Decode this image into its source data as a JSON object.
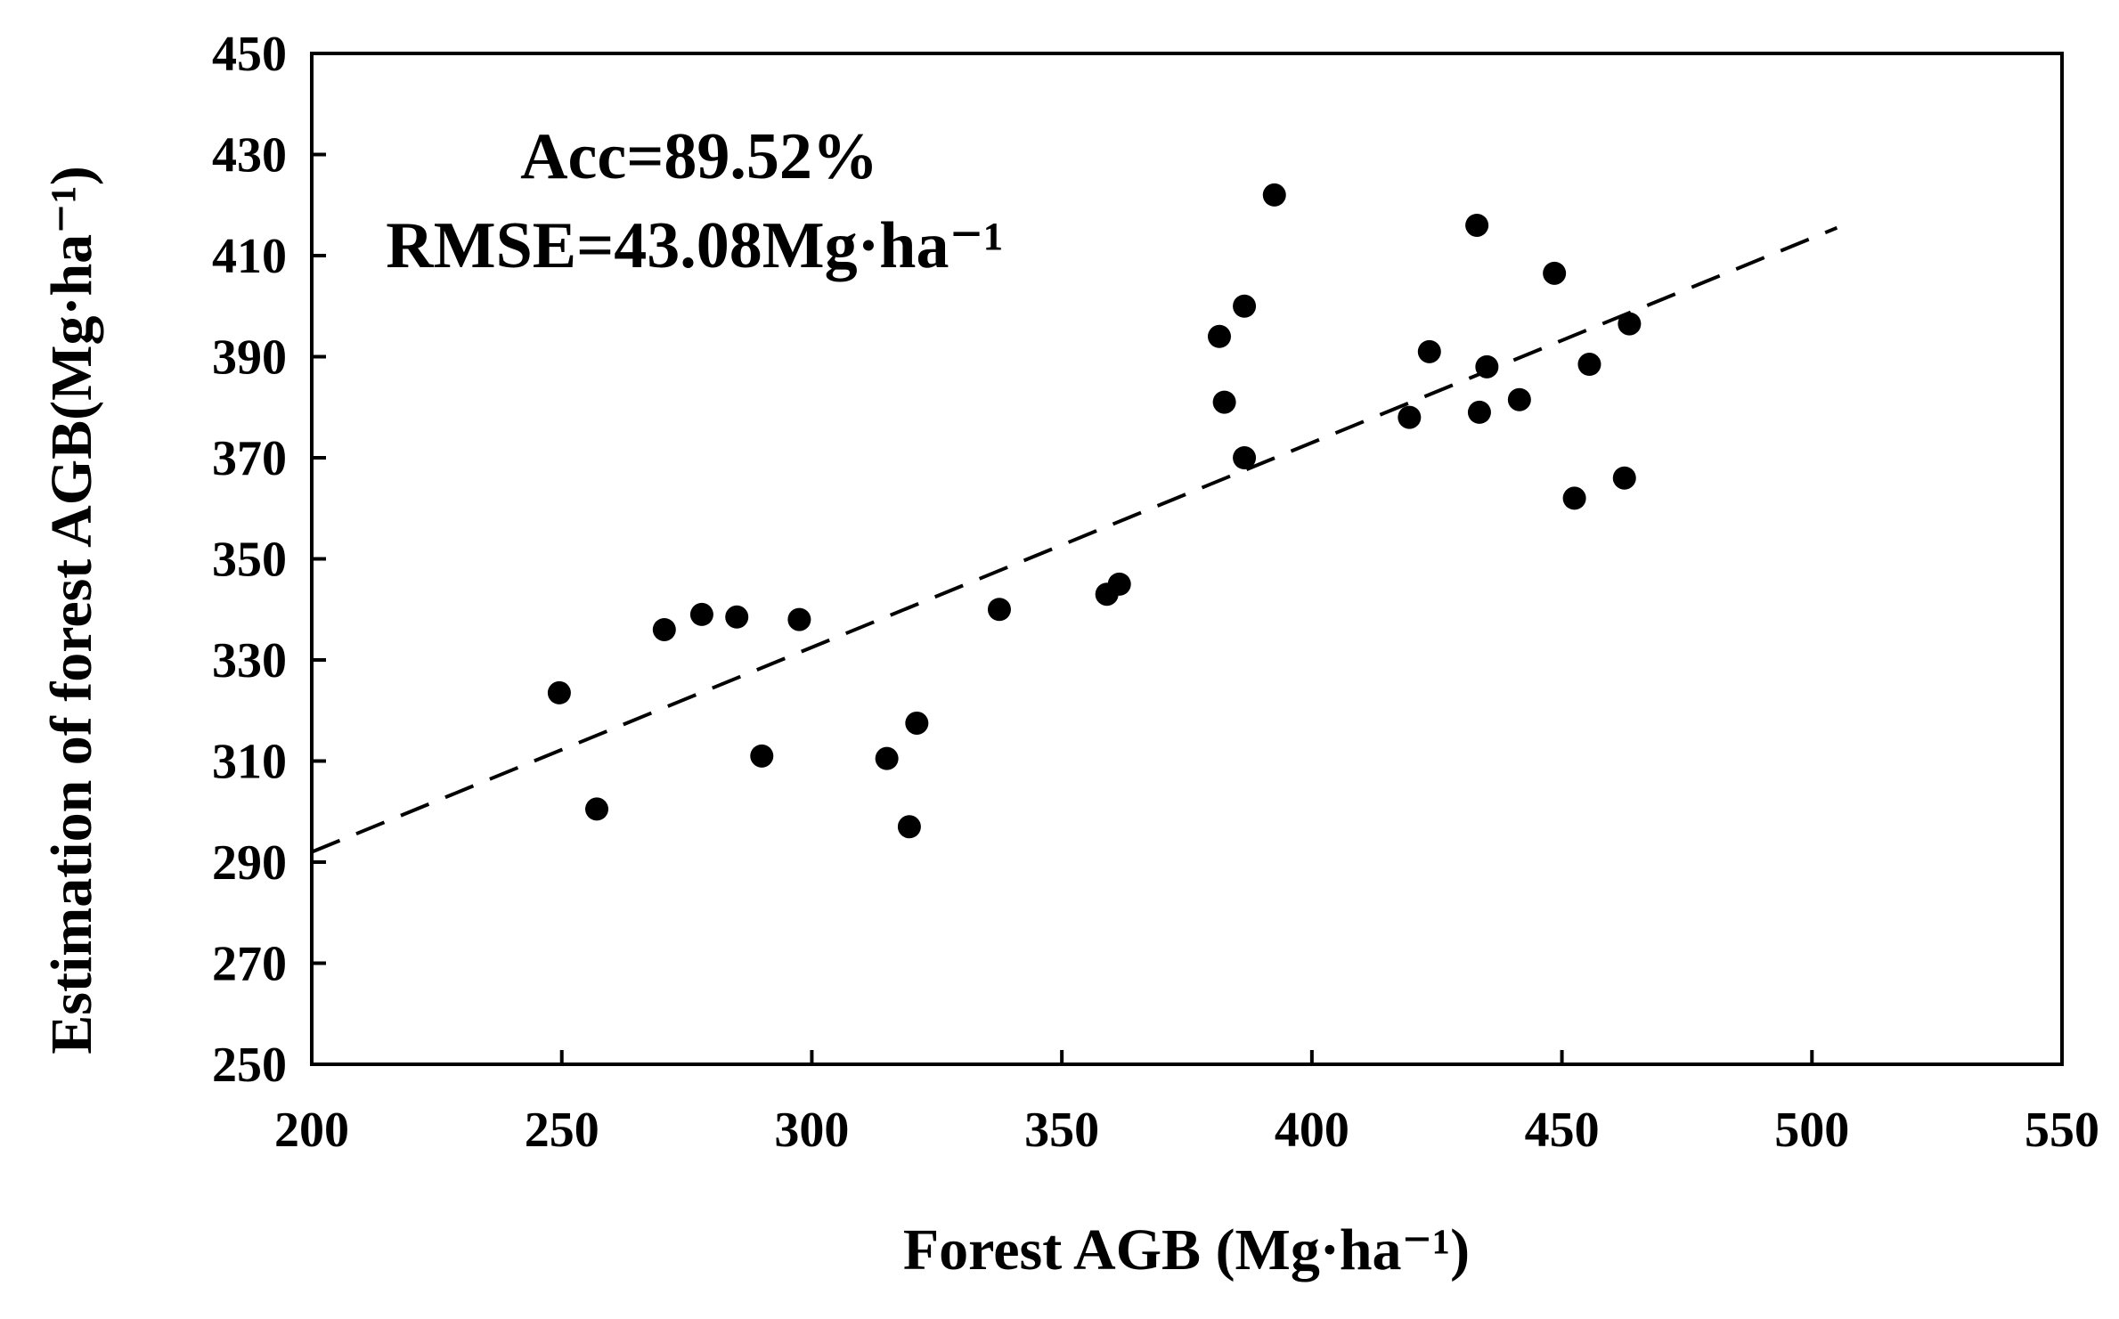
{
  "chart_data": {
    "type": "scatter",
    "xlabel": "Forest AGB (Mg·ha⁻¹)",
    "ylabel": "Estimation of forest AGB(Mg·ha⁻¹)",
    "xlim": [
      200,
      550
    ],
    "ylim": [
      250,
      450
    ],
    "xticks": [
      200,
      250,
      300,
      350,
      400,
      450,
      500,
      550
    ],
    "yticks": [
      250,
      270,
      290,
      310,
      330,
      350,
      370,
      390,
      410,
      430,
      450
    ],
    "xtick_labels": [
      "200",
      "250",
      "300",
      "350",
      "400",
      "450",
      "500",
      "550"
    ],
    "ytick_labels": [
      "250",
      "270",
      "290",
      "310",
      "330",
      "350",
      "370",
      "390",
      "410",
      "430",
      "450"
    ],
    "grid": false,
    "legend": "none",
    "annotations": [
      "Acc=89.52%",
      "RMSE=43.08Mg·ha⁻¹"
    ],
    "series": [
      {
        "type": "scatter",
        "color": "#000000",
        "points": [
          [
            249.5,
            323.5
          ],
          [
            257,
            300.5
          ],
          [
            270.5,
            336
          ],
          [
            278,
            339
          ],
          [
            285,
            338.5
          ],
          [
            290,
            311
          ],
          [
            297.5,
            338
          ],
          [
            315,
            310.5
          ],
          [
            319.5,
            297
          ],
          [
            321,
            317.5
          ],
          [
            337.5,
            340
          ],
          [
            359,
            343
          ],
          [
            361.5,
            345
          ],
          [
            381.5,
            394
          ],
          [
            382.5,
            381
          ],
          [
            386.5,
            400
          ],
          [
            386.5,
            370
          ],
          [
            392.5,
            422
          ],
          [
            419.5,
            378
          ],
          [
            423.5,
            391
          ],
          [
            433,
            416
          ],
          [
            433.5,
            379
          ],
          [
            435,
            388
          ],
          [
            441.5,
            381.5
          ],
          [
            448.5,
            406.5
          ],
          [
            452.5,
            362
          ],
          [
            455.5,
            388.5
          ],
          [
            462.5,
            366
          ],
          [
            463.5,
            396.5
          ]
        ]
      },
      {
        "type": "line",
        "style": "dashed",
        "color": "#000000",
        "points": [
          [
            200,
            292
          ],
          [
            505,
            415.5
          ]
        ]
      }
    ]
  }
}
